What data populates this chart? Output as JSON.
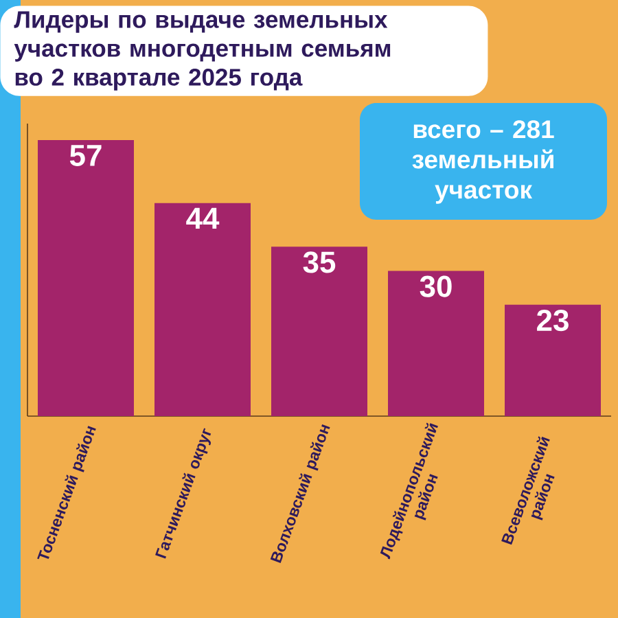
{
  "chart_data": {
    "type": "bar",
    "title": "Лидеры по выдаче земельных участков многодетным семьям во 2 квартале 2025 года",
    "categories": [
      "Тосненский район",
      "Гатчинский округ",
      "Волховский район",
      "Лодейнопольский район",
      "Всеволожский район"
    ],
    "values": [
      57,
      44,
      35,
      30,
      23
    ],
    "color": "#a3246a",
    "data_labels": true,
    "annotations": [
      "всего – 281 земельный участок"
    ]
  }
}
